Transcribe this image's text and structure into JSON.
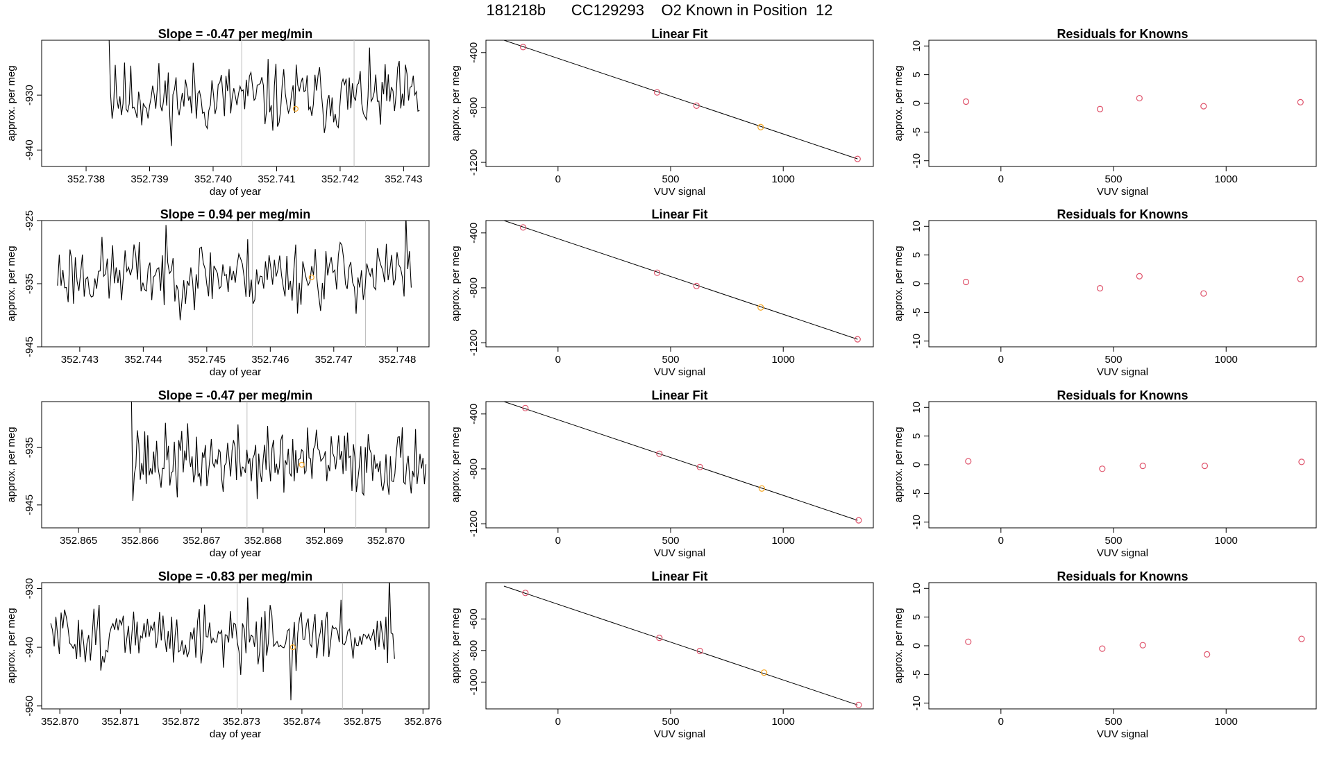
{
  "figure_title": "181218b      CC129293    O2 Known in Position  12",
  "colors": {
    "line": "#000000",
    "grid": "#bebebe",
    "point_known": "#df536b",
    "point_unknown": "#f5a623"
  },
  "chart_data": [
    {
      "type": "line",
      "row": 0,
      "col": 0,
      "title": "Slope =  -0.47  per meg/min",
      "xlabel": "day of year",
      "ylabel": "approx. per meg",
      "xlim": [
        352.7373,
        352.7434
      ],
      "ylim": [
        -943.0,
        -920.0
      ],
      "xticks": [
        352.738,
        352.739,
        352.74,
        352.741,
        352.742,
        352.743
      ],
      "xtick_labels": [
        "352.738",
        "352.739",
        "352.740",
        "352.741",
        "352.742",
        "352.743"
      ],
      "yticks": [
        -930,
        -940
      ],
      "ytick_labels": [
        "-930",
        "-940"
      ],
      "vlines": [
        352.74045,
        352.74222
      ],
      "series_start": 352.73836,
      "series_end": 352.74325,
      "series_base": -930.5,
      "series_amp": 3.2,
      "series_seed": 11,
      "spikes": [
        {
          "at": 0.0,
          "value": -919.0
        },
        {
          "at": 0.02,
          "value": -924.5
        }
      ],
      "marker": {
        "x": 352.7413,
        "y": -932.5
      }
    },
    {
      "type": "line",
      "row": 1,
      "col": 0,
      "title": "Slope =  0.94  per meg/min",
      "xlabel": "day of year",
      "ylabel": "approx. per meg",
      "xlim": [
        352.7424,
        352.7485
      ],
      "ylim": [
        -945.0,
        -925.0
      ],
      "xticks": [
        352.743,
        352.744,
        352.745,
        352.746,
        352.747,
        352.748
      ],
      "xtick_labels": [
        "352.743",
        "352.744",
        "352.745",
        "352.746",
        "352.747",
        "352.748"
      ],
      "yticks": [
        -925,
        -935,
        -945
      ],
      "ytick_labels": [
        "-925",
        "-935",
        "-945"
      ],
      "vlines": [
        352.74572,
        352.7475
      ],
      "series_start": 352.74265,
      "series_end": 352.74822,
      "series_base": -933.5,
      "series_amp": 2.8,
      "series_seed": 23,
      "spikes": [
        {
          "at": 0.985,
          "value": -924.0
        },
        {
          "at": 0.965,
          "value": -932.0
        }
      ],
      "marker": {
        "x": 352.74665,
        "y": -934.0
      }
    },
    {
      "type": "line",
      "row": 2,
      "col": 0,
      "title": "Slope =  -0.47  per meg/min",
      "xlabel": "day of year",
      "ylabel": "approx. per meg",
      "xlim": [
        352.8644,
        352.8707
      ],
      "ylim": [
        -949.0,
        -927.0
      ],
      "xticks": [
        352.865,
        352.866,
        352.867,
        352.868,
        352.869,
        352.87
      ],
      "xtick_labels": [
        "352.865",
        "352.866",
        "352.867",
        "352.868",
        "352.869",
        "352.870"
      ],
      "yticks": [
        -935,
        -945
      ],
      "ytick_labels": [
        "-935",
        "-945"
      ],
      "vlines": [
        352.86774,
        352.86951
      ],
      "series_start": 352.86586,
      "series_end": 352.87065,
      "series_base": -937.5,
      "series_amp": 3.0,
      "series_seed": 37,
      "spikes": [
        {
          "at": 0.0,
          "value": -926.0
        },
        {
          "at": 0.02,
          "value": -932.0
        }
      ],
      "marker": {
        "x": 352.86863,
        "y": -938.0
      }
    },
    {
      "type": "line",
      "row": 3,
      "col": 0,
      "title": "Slope =  -0.83  per meg/min",
      "xlabel": "day of year",
      "ylabel": "approx. per meg",
      "xlim": [
        352.8697,
        352.8761
      ],
      "ylim": [
        -950.5,
        -929.0
      ],
      "xticks": [
        352.87,
        352.871,
        352.872,
        352.873,
        352.874,
        352.875,
        352.876
      ],
      "xtick_labels": [
        "352.870",
        "352.871",
        "352.872",
        "352.873",
        "352.874",
        "352.875",
        "352.876"
      ],
      "yticks": [
        -930,
        -940,
        -950
      ],
      "ytick_labels": [
        "-930",
        "-940",
        "-950"
      ],
      "vlines": [
        352.87293,
        352.87467
      ],
      "series_start": 352.86985,
      "series_end": 352.87553,
      "series_base": -938.0,
      "series_amp": 2.6,
      "series_seed": 51,
      "spikes": [
        {
          "at": 0.985,
          "value": -928.0
        },
        {
          "at": 0.965,
          "value": -938.0
        },
        {
          "at": 0.7,
          "value": -949.0
        }
      ],
      "marker": {
        "x": 352.87385,
        "y": -940.0
      }
    },
    {
      "type": "scatter",
      "row": 0,
      "col": 1,
      "title": "Linear Fit",
      "xlabel": "VUV signal",
      "ylabel": "approx. per meg",
      "xlim": [
        -320,
        1400
      ],
      "ylim": [
        -1230,
        -310
      ],
      "xticks": [
        0,
        500,
        1000
      ],
      "xtick_labels": [
        "0",
        "500",
        "1000"
      ],
      "yticks": [
        -400,
        -800,
        -1200
      ],
      "ytick_labels": [
        "-400",
        "-800",
        "-1200"
      ],
      "fit": {
        "x": [
          -240,
          1330
        ],
        "y": [
          -310,
          -1175
        ]
      },
      "points": [
        {
          "x": -155,
          "y": -360
        },
        {
          "x": 440,
          "y": -690
        },
        {
          "x": 615,
          "y": -787
        },
        {
          "x": 900,
          "y": -943
        },
        {
          "x": 1330,
          "y": -1175
        }
      ],
      "unknown_index": 3
    },
    {
      "type": "scatter",
      "row": 1,
      "col": 1,
      "title": "Linear Fit",
      "xlabel": "VUV signal",
      "ylabel": "approx. per meg",
      "xlim": [
        -320,
        1400
      ],
      "ylim": [
        -1230,
        -310
      ],
      "xticks": [
        0,
        500,
        1000
      ],
      "xtick_labels": [
        "0",
        "500",
        "1000"
      ],
      "yticks": [
        -400,
        -800,
        -1200
      ],
      "ytick_labels": [
        "-400",
        "-800",
        "-1200"
      ],
      "fit": {
        "x": [
          -240,
          1330
        ],
        "y": [
          -310,
          -1175
        ]
      },
      "points": [
        {
          "x": -155,
          "y": -360
        },
        {
          "x": 440,
          "y": -690
        },
        {
          "x": 615,
          "y": -787
        },
        {
          "x": 900,
          "y": -943
        },
        {
          "x": 1330,
          "y": -1175
        }
      ],
      "unknown_index": 3
    },
    {
      "type": "scatter",
      "row": 2,
      "col": 1,
      "title": "Linear Fit",
      "xlabel": "VUV signal",
      "ylabel": "approx. per meg",
      "xlim": [
        -320,
        1400
      ],
      "ylim": [
        -1230,
        -310
      ],
      "xticks": [
        0,
        500,
        1000
      ],
      "xtick_labels": [
        "0",
        "500",
        "1000"
      ],
      "yticks": [
        -400,
        -800,
        -1200
      ],
      "ytick_labels": [
        "-400",
        "-800",
        "-1200"
      ],
      "fit": {
        "x": [
          -240,
          1330
        ],
        "y": [
          -310,
          -1175
        ]
      },
      "points": [
        {
          "x": -145,
          "y": -357
        },
        {
          "x": 450,
          "y": -690
        },
        {
          "x": 630,
          "y": -787
        },
        {
          "x": 905,
          "y": -943
        },
        {
          "x": 1335,
          "y": -1175
        }
      ],
      "unknown_index": 3
    },
    {
      "type": "scatter",
      "row": 3,
      "col": 1,
      "title": "Linear Fit",
      "xlabel": "VUV signal",
      "ylabel": "approx. per meg",
      "xlim": [
        -320,
        1400
      ],
      "ylim": [
        -1170,
        -370
      ],
      "xticks": [
        0,
        500,
        1000
      ],
      "xtick_labels": [
        "0",
        "500",
        "1000"
      ],
      "yticks": [
        -600,
        -800,
        -1000
      ],
      "ytick_labels": [
        "-600",
        "-800",
        "-1000"
      ],
      "fit": {
        "x": [
          -240,
          1330
        ],
        "y": [
          -392,
          -1145
        ]
      },
      "points": [
        {
          "x": -145,
          "y": -435
        },
        {
          "x": 450,
          "y": -720
        },
        {
          "x": 630,
          "y": -803
        },
        {
          "x": 915,
          "y": -940
        },
        {
          "x": 1335,
          "y": -1145
        }
      ],
      "unknown_index": 3
    },
    {
      "type": "scatter",
      "row": 0,
      "col": 2,
      "title": "Residuals for Knowns",
      "xlabel": "VUV signal",
      "ylabel": "approx. per meg",
      "xlim": [
        -320,
        1400
      ],
      "ylim": [
        -11,
        11
      ],
      "xticks": [
        0,
        500,
        1000
      ],
      "xtick_labels": [
        "0",
        "500",
        "1000"
      ],
      "yticks": [
        10,
        5,
        0,
        -5,
        -10
      ],
      "ytick_labels": [
        "10",
        "5",
        "0",
        "-5",
        "-10"
      ],
      "points": [
        {
          "x": -155,
          "y": 0.3
        },
        {
          "x": 440,
          "y": -1.0
        },
        {
          "x": 615,
          "y": 0.9
        },
        {
          "x": 900,
          "y": -0.5
        },
        {
          "x": 1330,
          "y": 0.2
        }
      ]
    },
    {
      "type": "scatter",
      "row": 1,
      "col": 2,
      "title": "Residuals for Knowns",
      "xlabel": "VUV signal",
      "ylabel": "approx. per meg",
      "xlim": [
        -320,
        1400
      ],
      "ylim": [
        -11,
        11
      ],
      "xticks": [
        0,
        500,
        1000
      ],
      "xtick_labels": [
        "0",
        "500",
        "1000"
      ],
      "yticks": [
        10,
        5,
        0,
        -5,
        -10
      ],
      "ytick_labels": [
        "10",
        "5",
        "0",
        "-5",
        "-10"
      ],
      "points": [
        {
          "x": -155,
          "y": 0.3
        },
        {
          "x": 440,
          "y": -0.8
        },
        {
          "x": 615,
          "y": 1.3
        },
        {
          "x": 900,
          "y": -1.7
        },
        {
          "x": 1330,
          "y": 0.8
        }
      ]
    },
    {
      "type": "scatter",
      "row": 2,
      "col": 2,
      "title": "Residuals for Knowns",
      "xlabel": "VUV signal",
      "ylabel": "approx. per meg",
      "xlim": [
        -320,
        1400
      ],
      "ylim": [
        -11,
        11
      ],
      "xticks": [
        0,
        500,
        1000
      ],
      "xtick_labels": [
        "0",
        "500",
        "1000"
      ],
      "yticks": [
        10,
        5,
        0,
        -5,
        -10
      ],
      "ytick_labels": [
        "10",
        "5",
        "0",
        "-5",
        "-10"
      ],
      "points": [
        {
          "x": -145,
          "y": 0.6
        },
        {
          "x": 450,
          "y": -0.7
        },
        {
          "x": 630,
          "y": -0.2
        },
        {
          "x": 905,
          "y": -0.2
        },
        {
          "x": 1335,
          "y": 0.5
        }
      ]
    },
    {
      "type": "scatter",
      "row": 3,
      "col": 2,
      "title": "Residuals for Knowns",
      "xlabel": "VUV signal",
      "ylabel": "approx. per meg",
      "xlim": [
        -320,
        1400
      ],
      "ylim": [
        -11,
        11
      ],
      "xticks": [
        0,
        500,
        1000
      ],
      "xtick_labels": [
        "0",
        "500",
        "1000"
      ],
      "yticks": [
        10,
        5,
        0,
        -5,
        -10
      ],
      "ytick_labels": [
        "10",
        "5",
        "0",
        "-5",
        "-10"
      ],
      "points": [
        {
          "x": -145,
          "y": 0.7
        },
        {
          "x": 450,
          "y": -0.5
        },
        {
          "x": 630,
          "y": 0.1
        },
        {
          "x": 915,
          "y": -1.5
        },
        {
          "x": 1335,
          "y": 1.2
        }
      ]
    }
  ]
}
